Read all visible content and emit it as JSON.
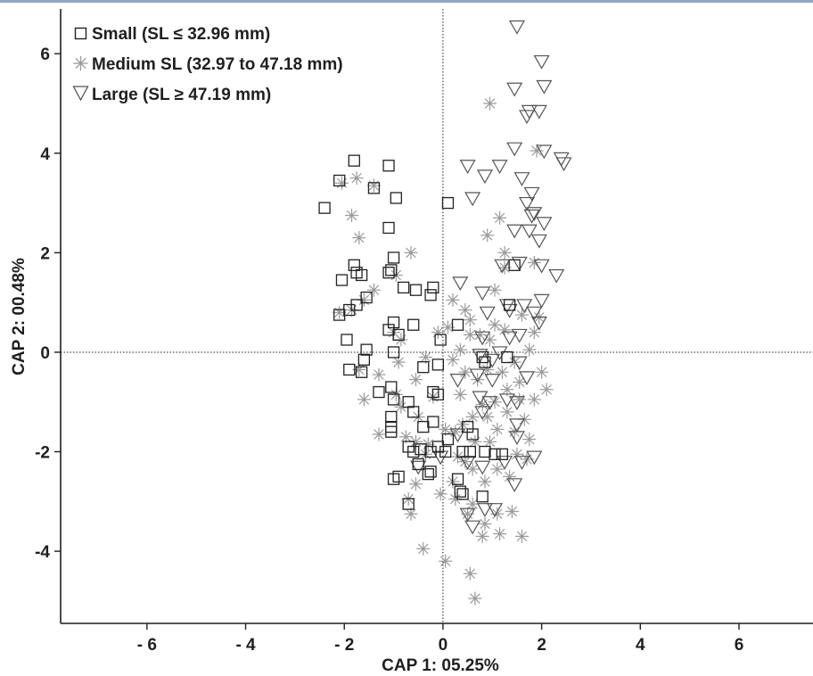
{
  "chart_data": {
    "type": "scatter",
    "title": "",
    "xlabel": "CAP 1: 05.25%",
    "ylabel": "CAP 2: 00.48%",
    "xlim": [
      -7.75,
      7.5
    ],
    "ylim": [
      -5.45,
      6.9
    ],
    "x_ticks": [
      -6,
      -4,
      -2,
      0,
      2,
      4,
      6
    ],
    "x_tick_labels": [
      "- 6",
      "- 4",
      "- 2",
      "0",
      "2",
      "4",
      "6"
    ],
    "y_ticks": [
      -4,
      -2,
      0,
      2,
      4,
      6
    ],
    "y_tick_labels": [
      "-4",
      "-2",
      "0",
      "2",
      "4",
      "6"
    ],
    "reference_lines": {
      "x": 0,
      "y": 0,
      "style": "dotted"
    },
    "grid": false,
    "legend_position": "top-left",
    "series": [
      {
        "name": "Small (SL ≤ 32.96 mm)",
        "marker": "square",
        "color": "#222222",
        "points": [
          [
            -1.8,
            3.85
          ],
          [
            -2.1,
            3.45
          ],
          [
            -1.4,
            3.3
          ],
          [
            -1.1,
            3.75
          ],
          [
            -0.95,
            3.1
          ],
          [
            -2.4,
            2.9
          ],
          [
            -1.1,
            2.5
          ],
          [
            0.1,
            3.0
          ],
          [
            -1.8,
            1.75
          ],
          [
            -1.75,
            1.6
          ],
          [
            -1.65,
            1.55
          ],
          [
            -2.05,
            1.45
          ],
          [
            -1.0,
            1.9
          ],
          [
            -1.1,
            1.6
          ],
          [
            -1.05,
            1.65
          ],
          [
            -0.8,
            1.3
          ],
          [
            -0.55,
            1.25
          ],
          [
            -0.25,
            1.15
          ],
          [
            -0.2,
            1.3
          ],
          [
            -2.1,
            0.75
          ],
          [
            -1.9,
            0.85
          ],
          [
            -1.75,
            0.95
          ],
          [
            -1.55,
            1.1
          ],
          [
            -1.0,
            0.6
          ],
          [
            -1.1,
            0.45
          ],
          [
            -0.9,
            0.35
          ],
          [
            -0.6,
            0.55
          ],
          [
            -1.95,
            0.25
          ],
          [
            -0.05,
            0.25
          ],
          [
            0.3,
            0.55
          ],
          [
            -1.55,
            0.05
          ],
          [
            -1.6,
            -0.15
          ],
          [
            -1.9,
            -0.35
          ],
          [
            -1.65,
            -0.4
          ],
          [
            -1.0,
            0.0
          ],
          [
            -0.4,
            -0.3
          ],
          [
            -0.1,
            -0.25
          ],
          [
            -1.3,
            -0.8
          ],
          [
            -1.05,
            -0.7
          ],
          [
            -1.0,
            -0.95
          ],
          [
            -1.05,
            -1.3
          ],
          [
            -0.7,
            -1.0
          ],
          [
            -0.6,
            -1.2
          ],
          [
            -1.05,
            -1.5
          ],
          [
            -1.05,
            -1.6
          ],
          [
            -0.4,
            -1.5
          ],
          [
            -0.2,
            -1.4
          ],
          [
            -0.2,
            -0.8
          ],
          [
            -0.1,
            -0.85
          ],
          [
            -0.7,
            -1.9
          ],
          [
            -0.6,
            -2.0
          ],
          [
            -0.45,
            -1.95
          ],
          [
            -0.25,
            -2.0
          ],
          [
            -0.1,
            -1.9
          ],
          [
            0.1,
            -1.75
          ],
          [
            0.05,
            -2.0
          ],
          [
            -0.5,
            -2.25
          ],
          [
            -0.25,
            -2.4
          ],
          [
            -0.3,
            -2.45
          ],
          [
            -1.0,
            -2.55
          ],
          [
            -0.9,
            -2.5
          ],
          [
            -0.7,
            -3.05
          ],
          [
            0.3,
            -2.55
          ],
          [
            0.35,
            -2.8
          ],
          [
            0.4,
            -2.85
          ],
          [
            0.8,
            -2.9
          ],
          [
            0.5,
            -1.5
          ],
          [
            0.6,
            -1.65
          ],
          [
            0.4,
            -2.0
          ],
          [
            0.55,
            -2.0
          ],
          [
            0.85,
            -2.0
          ],
          [
            1.05,
            -2.05
          ],
          [
            1.2,
            -2.05
          ],
          [
            0.8,
            -0.1
          ],
          [
            0.85,
            -0.2
          ],
          [
            1.3,
            -0.1
          ],
          [
            1.35,
            0.95
          ],
          [
            1.45,
            1.75
          ]
        ]
      },
      {
        "name": "Medium SL (32.97 to 47.18 mm)",
        "marker": "asterisk",
        "color": "#9a9a9a",
        "points": [
          [
            -1.75,
            3.5
          ],
          [
            -2.05,
            3.4
          ],
          [
            -1.4,
            3.35
          ],
          [
            -1.85,
            2.75
          ],
          [
            -1.7,
            2.3
          ],
          [
            -0.65,
            2.0
          ],
          [
            -1.4,
            1.25
          ],
          [
            -0.95,
            1.55
          ],
          [
            -2.1,
            0.8
          ],
          [
            -1.85,
            0.85
          ],
          [
            -1.6,
            1.05
          ],
          [
            -1.0,
            0.4
          ],
          [
            -0.85,
            0.25
          ],
          [
            -1.7,
            -0.35
          ],
          [
            -1.3,
            -0.45
          ],
          [
            -0.9,
            -0.2
          ],
          [
            -0.55,
            -0.55
          ],
          [
            -0.35,
            -0.1
          ],
          [
            -1.6,
            -0.95
          ],
          [
            -0.95,
            -0.85
          ],
          [
            -0.85,
            -1.1
          ],
          [
            -0.5,
            -1.3
          ],
          [
            -0.75,
            -1.7
          ],
          [
            -0.55,
            -1.8
          ],
          [
            -1.3,
            -1.65
          ],
          [
            -0.3,
            -1.85
          ],
          [
            -0.35,
            -2.05
          ],
          [
            -0.55,
            -2.65
          ],
          [
            -0.7,
            -2.95
          ],
          [
            -0.65,
            -3.25
          ],
          [
            -0.05,
            -2.85
          ],
          [
            -0.4,
            -3.95
          ],
          [
            0.05,
            -4.2
          ],
          [
            0.55,
            -4.45
          ],
          [
            0.65,
            -4.95
          ],
          [
            0.95,
            5.0
          ],
          [
            1.15,
            2.7
          ],
          [
            0.9,
            2.35
          ],
          [
            1.25,
            2.0
          ],
          [
            1.25,
            1.7
          ],
          [
            1.85,
            1.8
          ],
          [
            0.2,
            1.05
          ],
          [
            0.45,
            0.85
          ],
          [
            0.55,
            0.65
          ],
          [
            0.75,
            0.35
          ],
          [
            0.95,
            0.25
          ],
          [
            1.05,
            0.55
          ],
          [
            1.25,
            0.45
          ],
          [
            0.35,
            0.05
          ],
          [
            0.1,
            0.5
          ],
          [
            0.2,
            -0.15
          ],
          [
            0.45,
            -0.4
          ],
          [
            0.7,
            -0.55
          ],
          [
            0.9,
            -0.35
          ],
          [
            1.2,
            -0.4
          ],
          [
            1.55,
            -0.6
          ],
          [
            1.45,
            -0.2
          ],
          [
            1.75,
            0.05
          ],
          [
            1.85,
            0.4
          ],
          [
            1.95,
            0.7
          ],
          [
            2.0,
            -0.4
          ],
          [
            2.1,
            -0.75
          ],
          [
            1.85,
            -0.95
          ],
          [
            1.55,
            -0.95
          ],
          [
            1.3,
            -1.2
          ],
          [
            1.05,
            -1.0
          ],
          [
            0.8,
            -1.05
          ],
          [
            0.6,
            -1.3
          ],
          [
            0.4,
            -1.45
          ],
          [
            0.25,
            -1.6
          ],
          [
            0.05,
            -1.55
          ],
          [
            0.3,
            -2.1
          ],
          [
            0.6,
            -2.35
          ],
          [
            0.85,
            -2.6
          ],
          [
            1.1,
            -2.35
          ],
          [
            1.35,
            -2.5
          ],
          [
            1.5,
            -2.05
          ],
          [
            1.7,
            -2.15
          ],
          [
            1.75,
            -1.75
          ],
          [
            1.45,
            -1.6
          ],
          [
            1.1,
            -1.55
          ],
          [
            0.95,
            -1.8
          ],
          [
            0.65,
            -1.8
          ],
          [
            0.45,
            -2.2
          ],
          [
            0.2,
            -2.6
          ],
          [
            0.25,
            -2.95
          ],
          [
            0.5,
            -3.25
          ],
          [
            0.85,
            -3.45
          ],
          [
            1.1,
            -3.25
          ],
          [
            1.4,
            -3.2
          ],
          [
            1.15,
            -3.65
          ],
          [
            0.8,
            -3.7
          ],
          [
            1.6,
            -3.7
          ],
          [
            0.6,
            -3.05
          ],
          [
            -0.2,
            -0.9
          ],
          [
            -0.1,
            0.4
          ],
          [
            1.9,
            4.05
          ],
          [
            1.05,
            1.25
          ],
          [
            0.55,
            0.35
          ],
          [
            1.6,
            0.75
          ],
          [
            1.3,
            -0.75
          ],
          [
            0.9,
            -1.3
          ],
          [
            0.35,
            -0.85
          ],
          [
            1.65,
            -1.35
          ]
        ]
      },
      {
        "name": "Large (SL ≥ 47.19 mm)",
        "marker": "triangle-down",
        "color": "#555555",
        "points": [
          [
            1.5,
            6.55
          ],
          [
            2.0,
            5.85
          ],
          [
            1.45,
            5.3
          ],
          [
            2.05,
            5.35
          ],
          [
            1.75,
            4.85
          ],
          [
            1.95,
            4.85
          ],
          [
            1.7,
            4.75
          ],
          [
            1.45,
            4.1
          ],
          [
            2.05,
            4.05
          ],
          [
            2.4,
            3.9
          ],
          [
            2.45,
            3.8
          ],
          [
            0.5,
            3.75
          ],
          [
            0.85,
            3.55
          ],
          [
            1.15,
            3.75
          ],
          [
            1.6,
            3.5
          ],
          [
            1.8,
            3.2
          ],
          [
            1.7,
            3.0
          ],
          [
            0.6,
            3.1
          ],
          [
            1.8,
            2.75
          ],
          [
            1.85,
            2.8
          ],
          [
            2.05,
            2.6
          ],
          [
            1.45,
            2.45
          ],
          [
            1.75,
            2.45
          ],
          [
            1.95,
            2.25
          ],
          [
            0.35,
            1.4
          ],
          [
            1.2,
            1.75
          ],
          [
            1.55,
            1.8
          ],
          [
            2.0,
            1.75
          ],
          [
            2.3,
            1.55
          ],
          [
            0.8,
            1.2
          ],
          [
            1.3,
            0.95
          ],
          [
            1.65,
            0.95
          ],
          [
            2.0,
            1.05
          ],
          [
            0.9,
            0.8
          ],
          [
            1.35,
            0.85
          ],
          [
            1.85,
            0.8
          ],
          [
            1.95,
            0.6
          ],
          [
            0.8,
            0.3
          ],
          [
            1.35,
            0.3
          ],
          [
            1.55,
            0.35
          ],
          [
            0.75,
            -0.05
          ],
          [
            1.0,
            -0.15
          ],
          [
            1.15,
            0.0
          ],
          [
            1.55,
            -0.2
          ],
          [
            0.3,
            -0.55
          ],
          [
            0.7,
            -0.45
          ],
          [
            1.0,
            -0.55
          ],
          [
            1.7,
            -0.5
          ],
          [
            0.75,
            -0.9
          ],
          [
            0.95,
            -1.0
          ],
          [
            1.3,
            -0.95
          ],
          [
            1.5,
            -1.0
          ],
          [
            0.8,
            -1.2
          ],
          [
            1.5,
            -1.45
          ],
          [
            0.3,
            -1.65
          ],
          [
            1.5,
            -1.7
          ],
          [
            0.5,
            -2.2
          ],
          [
            0.8,
            -2.3
          ],
          [
            1.25,
            -2.2
          ],
          [
            1.6,
            -2.2
          ],
          [
            1.85,
            -2.1
          ],
          [
            1.45,
            -2.65
          ],
          [
            0.5,
            -3.25
          ],
          [
            1.05,
            -3.15
          ],
          [
            0.6,
            -3.5
          ],
          [
            0.85,
            -3.15
          ],
          [
            -0.5,
            -2.3
          ],
          [
            -0.05,
            -2.1
          ]
        ]
      }
    ]
  }
}
